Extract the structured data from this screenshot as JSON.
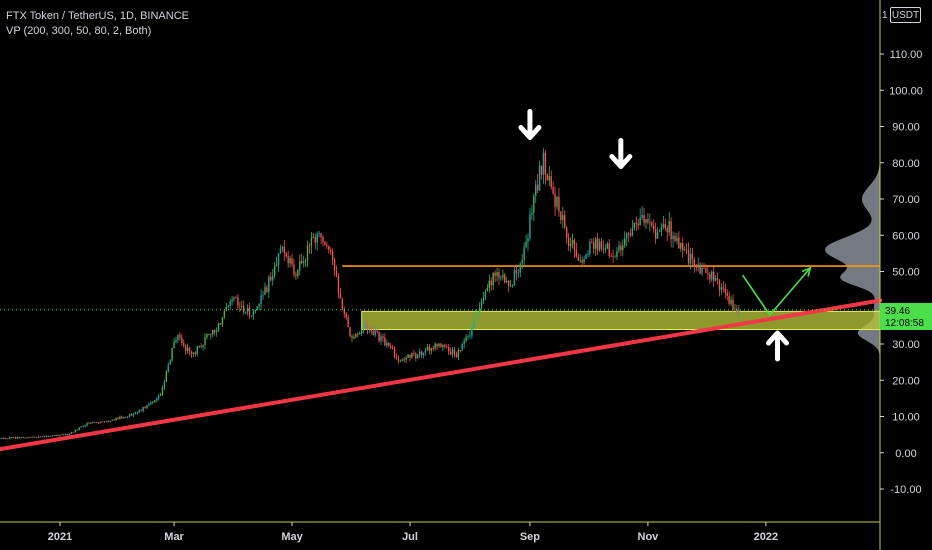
{
  "header": {
    "title": "FTX Token / TetherUS, 1D, BINANCE",
    "indicator": "VP (200, 300, 50, 80, 2, Both)"
  },
  "price_axis": {
    "unit": "USDT",
    "top_label": "1"
  },
  "colors": {
    "background": "#000000",
    "up_candle": "#26a69a",
    "up_candle_bright": "#4caf50",
    "down_candle": "#ef5350",
    "support_zone": "#b5c43a",
    "resistance_line": "#ff9800",
    "trendline": "#f23645",
    "projection": "#4cdf4c",
    "arrows": "#ffffff",
    "volume_profile": "#8a8f99",
    "price_badge": "#4cdf4c"
  },
  "chart_data": {
    "type": "candlestick",
    "title": "FTX Token / TetherUS, 1D, BINANCE",
    "y_ticks": [
      110,
      100,
      90,
      80,
      70,
      60,
      50,
      40,
      30,
      20,
      10,
      0,
      -10
    ],
    "y_tick_labels": [
      "110.00",
      "100.00",
      "90.00",
      "80.00",
      "70.00",
      "60.00",
      "50.00",
      "40.00",
      "30.00",
      "20.00",
      "10.00",
      "0.00",
      "-10.00"
    ],
    "ylim": [
      -20,
      120
    ],
    "x_range": [
      "2020-12-01",
      "2022-03-01"
    ],
    "x_ticks": [
      {
        "date": "2021-01-01",
        "label": "2021"
      },
      {
        "date": "2021-03-01",
        "label": "Mar"
      },
      {
        "date": "2021-05-01",
        "label": "May"
      },
      {
        "date": "2021-07-01",
        "label": "Jul"
      },
      {
        "date": "2021-09-01",
        "label": "Sep"
      },
      {
        "date": "2021-11-01",
        "label": "Nov"
      },
      {
        "date": "2022-01-01",
        "label": "2022"
      }
    ],
    "last_price": "39.46",
    "last_price_value": 39.46,
    "countdown": "12:08:58",
    "price_path": [
      [
        "2020-12-01",
        4.0
      ],
      [
        "2020-12-20",
        4.4
      ],
      [
        "2021-01-05",
        5.0
      ],
      [
        "2021-01-15",
        8.0
      ],
      [
        "2021-01-28",
        9.0
      ],
      [
        "2021-02-10",
        11.0
      ],
      [
        "2021-02-22",
        16.0
      ],
      [
        "2021-03-02",
        32.0
      ],
      [
        "2021-03-10",
        27.0
      ],
      [
        "2021-03-22",
        34.0
      ],
      [
        "2021-04-01",
        42.0
      ],
      [
        "2021-04-10",
        38.0
      ],
      [
        "2021-04-20",
        48.0
      ],
      [
        "2021-04-26",
        57.0
      ],
      [
        "2021-05-03",
        50.0
      ],
      [
        "2021-05-13",
        60.0
      ],
      [
        "2021-05-21",
        57.0
      ],
      [
        "2021-05-25",
        44.0
      ],
      [
        "2021-06-01",
        31.0
      ],
      [
        "2021-06-08",
        35.0
      ],
      [
        "2021-06-15",
        32.0
      ],
      [
        "2021-06-25",
        26.0
      ],
      [
        "2021-07-05",
        27.0
      ],
      [
        "2021-07-15",
        30.0
      ],
      [
        "2021-07-25",
        27.0
      ],
      [
        "2021-08-01",
        33.0
      ],
      [
        "2021-08-08",
        44.0
      ],
      [
        "2021-08-15",
        50.0
      ],
      [
        "2021-08-22",
        47.0
      ],
      [
        "2021-08-28",
        52.0
      ],
      [
        "2021-09-04",
        73.0
      ],
      [
        "2021-09-08",
        80.0
      ],
      [
        "2021-09-14",
        70.0
      ],
      [
        "2021-09-20",
        60.0
      ],
      [
        "2021-09-27",
        53.0
      ],
      [
        "2021-10-05",
        58.0
      ],
      [
        "2021-10-15",
        55.0
      ],
      [
        "2021-10-23",
        60.0
      ],
      [
        "2021-10-28",
        65.0
      ],
      [
        "2021-11-05",
        60.0
      ],
      [
        "2021-11-12",
        62.0
      ],
      [
        "2021-11-20",
        55.0
      ],
      [
        "2021-11-28",
        51.0
      ],
      [
        "2021-12-05",
        49.0
      ],
      [
        "2021-12-12",
        42.0
      ],
      [
        "2021-12-18",
        39.46
      ]
    ],
    "levels": {
      "resistance": 51.5,
      "support_zone": [
        34.0,
        39.0
      ]
    },
    "trendline": [
      [
        "2020-12-01",
        1.0
      ],
      [
        "2022-03-01",
        42.0
      ]
    ],
    "projection_path": [
      [
        "2021-12-20",
        49.0
      ],
      [
        "2022-01-03",
        38.0
      ],
      [
        "2022-01-24",
        51.0
      ]
    ],
    "arrows": [
      {
        "date": "2021-09-01",
        "price": 90.0,
        "direction": "down"
      },
      {
        "date": "2021-10-18",
        "price": 82.0,
        "direction": "down"
      },
      {
        "date": "2022-01-07",
        "price": 30.0,
        "direction": "up"
      }
    ]
  }
}
